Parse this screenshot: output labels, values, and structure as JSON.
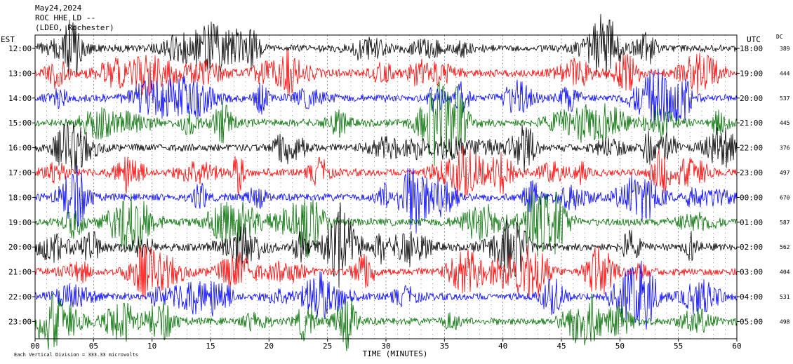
{
  "chart_data": {
    "type": "line",
    "title_lines": [
      "May24,2024",
      "ROC HHE LD --",
      "(LDEO, Rochester)"
    ],
    "left_axis_label": "EST",
    "right_axis_label": "UTC",
    "dc_label": "DC",
    "xlabel": "TIME (MINUTES)",
    "x_ticks": [
      "00",
      "05",
      "10",
      "15",
      "20",
      "25",
      "30",
      "35",
      "40",
      "45",
      "50",
      "55",
      "60"
    ],
    "xlim": [
      0,
      60
    ],
    "footer": "Each Vertical Division =  333.33 microvolts",
    "trace_colors": [
      "#000000",
      "#ff0000",
      "#0000ff",
      "#007000"
    ],
    "rows": [
      {
        "est": "12:00",
        "utc": "18:00",
        "dc": "389"
      },
      {
        "est": "13:00",
        "utc": "19:00",
        "dc": "444"
      },
      {
        "est": "14:00",
        "utc": "20:00",
        "dc": "537"
      },
      {
        "est": "15:00",
        "utc": "21:00",
        "dc": "445"
      },
      {
        "est": "16:00",
        "utc": "22:00",
        "dc": "376"
      },
      {
        "est": "17:00",
        "utc": "23:00",
        "dc": "497"
      },
      {
        "est": "18:00",
        "utc": "00:00",
        "dc": "670"
      },
      {
        "est": "19:00",
        "utc": "01:00",
        "dc": "587"
      },
      {
        "est": "20:00",
        "utc": "02:00",
        "dc": "562"
      },
      {
        "est": "21:00",
        "utc": "03:00",
        "dc": "404"
      },
      {
        "est": "22:00",
        "utc": "04:00",
        "dc": "531"
      },
      {
        "est": "23:00",
        "utc": "05:00",
        "dc": "498"
      }
    ]
  }
}
